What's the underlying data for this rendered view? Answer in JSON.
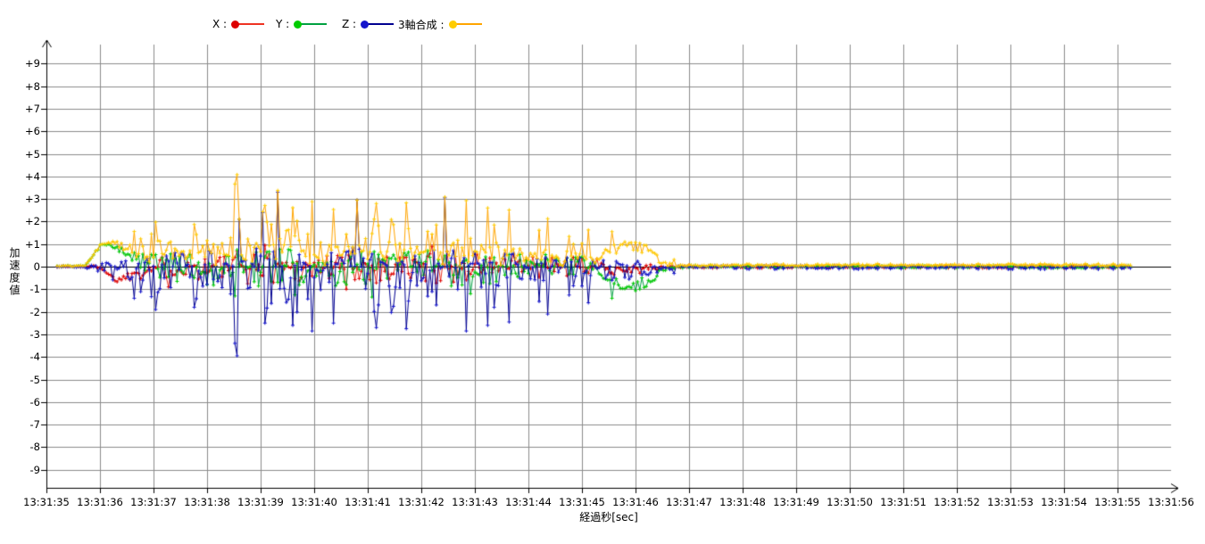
{
  "colors": {
    "background": "#ffffff",
    "grid": "#8c8c8c",
    "axis": "#000000",
    "zero_line": "#000000"
  },
  "chart_data": {
    "type": "line",
    "title": "",
    "xlabel": "経過秒[sec]",
    "ylabel": "加速度値",
    "ylim": [
      -9,
      9
    ],
    "y_tick_labels": [
      "+9",
      "+8",
      "+7",
      "+6",
      "+5",
      "+4",
      "+3",
      "+2",
      "+1",
      "0",
      "-1",
      "-2",
      "-3",
      "-4",
      "-5",
      "-6",
      "-7",
      "-8",
      "-9"
    ],
    "x_tick_labels": [
      "13:31:35",
      "13:31:36",
      "13:31:37",
      "13:31:38",
      "13:31:39",
      "13:31:40",
      "13:31:41",
      "13:31:42",
      "13:31:43",
      "13:31:44",
      "13:31:45",
      "13:31:46",
      "13:31:47",
      "13:31:48",
      "13:31:49",
      "13:31:50",
      "13:31:51",
      "13:31:52",
      "13:31:53",
      "13:31:54",
      "13:31:55",
      "13:31:56"
    ],
    "x_seconds_span": 21,
    "grid": true,
    "legend_position": "top",
    "sample_rate_hz": 25,
    "data_start_s": 0.2,
    "data_end_s": 20.22,
    "seed": 1337,
    "noise_exponent": 1.5,
    "composite_formula": "sqrt(x^2+y^2+z^2)",
    "series": [
      {
        "key": "x",
        "label": "X :",
        "line_color": "#ee3322",
        "marker_color": "#dd0000",
        "mean": [
          [
            0,
            0
          ],
          [
            1.0,
            0
          ],
          [
            1.12,
            -0.25
          ],
          [
            1.3,
            -0.6
          ],
          [
            1.5,
            -0.42
          ],
          [
            1.75,
            -0.15
          ],
          [
            2.1,
            0
          ],
          [
            10.4,
            0
          ],
          [
            10.8,
            -0.12
          ],
          [
            11.4,
            -0.06
          ],
          [
            11.7,
            0
          ],
          [
            21,
            0
          ]
        ],
        "env_pos": [
          [
            0,
            0.02
          ],
          [
            0.75,
            0.04
          ],
          [
            1.4,
            0.12
          ],
          [
            1.9,
            0.45
          ],
          [
            2.6,
            0.55
          ],
          [
            3.5,
            0.75
          ],
          [
            5.0,
            0.7
          ],
          [
            7.0,
            0.75
          ],
          [
            8.4,
            0.6
          ],
          [
            9.6,
            0.45
          ],
          [
            10.4,
            0.35
          ],
          [
            11.0,
            0.25
          ],
          [
            11.5,
            0.1
          ],
          [
            11.9,
            0.07
          ],
          [
            21,
            0.07
          ]
        ],
        "env_neg": [
          [
            0,
            0.02
          ],
          [
            0.75,
            0.04
          ],
          [
            1.4,
            0.15
          ],
          [
            1.9,
            0.5
          ],
          [
            2.6,
            0.6
          ],
          [
            3.5,
            0.8
          ],
          [
            5.0,
            0.75
          ],
          [
            7.0,
            0.8
          ],
          [
            8.4,
            0.65
          ],
          [
            9.6,
            0.5
          ],
          [
            10.4,
            0.35
          ],
          [
            11.0,
            0.25
          ],
          [
            11.5,
            0.1
          ],
          [
            11.9,
            0.07
          ],
          [
            21,
            0.07
          ]
        ],
        "peaks": [
          [
            2.3,
            -0.9
          ],
          [
            4.1,
            0.95
          ],
          [
            5.6,
            -1.0
          ],
          [
            7.2,
            0.9
          ]
        ]
      },
      {
        "key": "y",
        "label": "Y :",
        "line_color": "#00a040",
        "marker_color": "#00cc00",
        "mean": [
          [
            0,
            0
          ],
          [
            0.72,
            0.04
          ],
          [
            0.88,
            0.5
          ],
          [
            1.02,
            1.02
          ],
          [
            1.18,
            0.9
          ],
          [
            1.42,
            0.72
          ],
          [
            1.65,
            0.35
          ],
          [
            1.95,
            0.12
          ],
          [
            2.4,
            0
          ],
          [
            10.25,
            0
          ],
          [
            10.45,
            -0.55
          ],
          [
            10.7,
            -0.95
          ],
          [
            11.05,
            -0.8
          ],
          [
            11.3,
            -0.55
          ],
          [
            11.45,
            -0.25
          ],
          [
            11.6,
            -0.05
          ],
          [
            11.75,
            0
          ],
          [
            21,
            0
          ]
        ],
        "env_pos": [
          [
            0,
            0.02
          ],
          [
            0.8,
            0.04
          ],
          [
            1.5,
            0.18
          ],
          [
            2.0,
            0.55
          ],
          [
            3.0,
            0.7
          ],
          [
            3.6,
            0.85
          ],
          [
            5.5,
            0.8
          ],
          [
            7.2,
            0.85
          ],
          [
            8.5,
            0.65
          ],
          [
            9.7,
            0.5
          ],
          [
            10.4,
            0.35
          ],
          [
            11.1,
            0.25
          ],
          [
            11.6,
            0.1
          ],
          [
            11.9,
            0.07
          ],
          [
            21,
            0.07
          ]
        ],
        "env_neg": [
          [
            0,
            0.02
          ],
          [
            0.8,
            0.04
          ],
          [
            1.5,
            0.22
          ],
          [
            2.0,
            0.6
          ],
          [
            3.0,
            0.8
          ],
          [
            3.6,
            0.95
          ],
          [
            5.5,
            0.85
          ],
          [
            7.2,
            0.95
          ],
          [
            8.5,
            0.75
          ],
          [
            9.7,
            0.55
          ],
          [
            10.4,
            0.4
          ],
          [
            11.1,
            0.3
          ],
          [
            11.6,
            0.1
          ],
          [
            11.9,
            0.07
          ],
          [
            21,
            0.07
          ]
        ],
        "peaks": [
          [
            3.5,
            -1.3
          ],
          [
            4.65,
            -1.25
          ],
          [
            6.1,
            -1.35
          ],
          [
            7.9,
            -1.2
          ],
          [
            10.55,
            -1.4
          ]
        ]
      },
      {
        "key": "z",
        "label": "Z :",
        "line_color": "#000090",
        "marker_color": "#1515cc",
        "mean": [
          [
            0,
            0
          ],
          [
            21,
            0
          ]
        ],
        "env_pos": [
          [
            0,
            0.02
          ],
          [
            0.8,
            0.06
          ],
          [
            1.4,
            0.3
          ],
          [
            1.9,
            0.55
          ],
          [
            2.6,
            0.65
          ],
          [
            3.6,
            0.8
          ],
          [
            5.0,
            0.85
          ],
          [
            7.0,
            0.8
          ],
          [
            8.4,
            0.65
          ],
          [
            9.6,
            0.45
          ],
          [
            10.4,
            0.35
          ],
          [
            11.1,
            0.25
          ],
          [
            11.6,
            0.1
          ],
          [
            11.9,
            0.06
          ],
          [
            21,
            0.06
          ]
        ],
        "env_neg": [
          [
            0,
            0.02
          ],
          [
            0.8,
            0.1
          ],
          [
            1.4,
            0.8
          ],
          [
            1.9,
            1.35
          ],
          [
            2.5,
            1.6
          ],
          [
            3.2,
            1.8
          ],
          [
            3.7,
            2.15
          ],
          [
            4.6,
            2.25
          ],
          [
            5.6,
            2.3
          ],
          [
            6.6,
            2.2
          ],
          [
            7.6,
            2.25
          ],
          [
            8.4,
            1.95
          ],
          [
            9.2,
            1.6
          ],
          [
            9.9,
            1.2
          ],
          [
            10.4,
            0.85
          ],
          [
            11.1,
            0.45
          ],
          [
            11.6,
            0.15
          ],
          [
            11.9,
            0.12
          ],
          [
            21,
            0.12
          ]
        ],
        "peaks": [
          [
            1.62,
            -1.4
          ],
          [
            2.05,
            -1.9
          ],
          [
            2.75,
            -1.8
          ],
          [
            3.53,
            -3.4
          ],
          [
            3.57,
            -3.95
          ],
          [
            3.6,
            2.1
          ],
          [
            4.03,
            2.4
          ],
          [
            4.07,
            -2.5
          ],
          [
            4.32,
            3.3
          ],
          [
            4.6,
            -2.6
          ],
          [
            4.95,
            -2.85
          ],
          [
            5.35,
            -2.5
          ],
          [
            5.78,
            2.95
          ],
          [
            6.18,
            -2.7
          ],
          [
            6.72,
            -2.75
          ],
          [
            7.45,
            3.05
          ],
          [
            7.82,
            -2.85
          ],
          [
            8.25,
            -2.6
          ],
          [
            8.65,
            -2.45
          ],
          [
            9.35,
            -2.1
          ],
          [
            10.1,
            -1.6
          ],
          [
            11.7,
            -0.3
          ]
        ]
      },
      {
        "key": "composite",
        "label": "3軸合成 :",
        "line_color": "#ffa500",
        "marker_color": "#ffcc00",
        "computed": "sqrt(x^2+y^2+z^2)"
      }
    ]
  }
}
